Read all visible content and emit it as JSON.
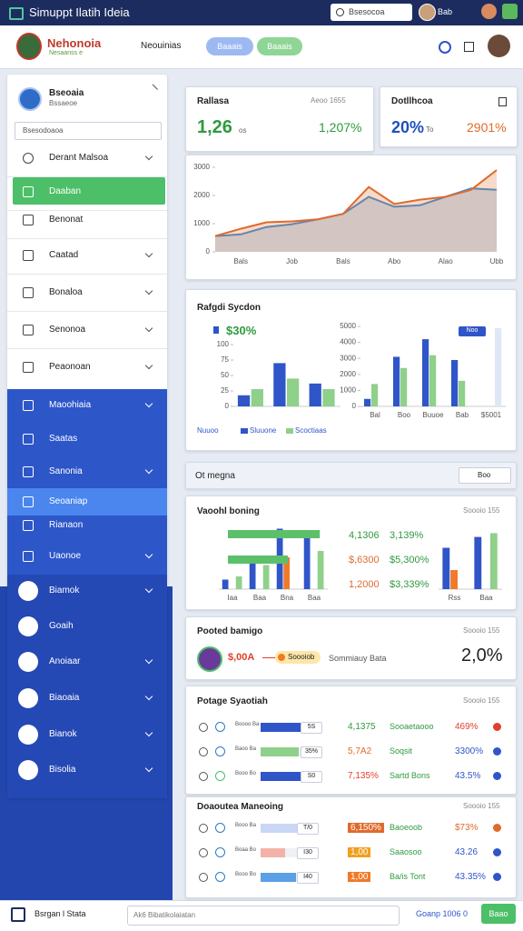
{
  "topbar": {
    "title": "Simuppt Ilatih Ideia",
    "search": "Bsesocoa",
    "user": "Bab"
  },
  "header": {
    "brand": "Nehonoia",
    "tagline": "Nesaanss e",
    "nav": "Neouinias",
    "buttons": [
      "Baaais",
      "Baaais"
    ]
  },
  "sidebar": {
    "title": "Bseoaia",
    "subtitle": "Bssaeoe",
    "search": "Bsesodoaoa",
    "items": [
      "Derant Malsoa",
      "Daaban",
      "Benonat",
      "Caatad",
      "Bonaloa",
      "Senonoa",
      "Peaonoan",
      "Maoohiaia",
      "Saatas",
      "Sanonia",
      "Seoaniap",
      "Rianaon",
      "Uaonoe",
      "Biamok",
      "Goaih",
      "Anoiaar",
      "Biaoaia",
      "Bianok",
      "Bisolia"
    ]
  },
  "stats": [
    {
      "title": "Rallasa",
      "note": "Aeoo 1655",
      "value": "1,26",
      "unit": "os",
      "change": "1,207%"
    },
    {
      "title": "Dotllhcoa",
      "value": "20%",
      "unit": "To",
      "change": "2901%"
    }
  ],
  "trend_chart": {
    "type": "line",
    "categories": [
      null,
      "Bals",
      null,
      "Job",
      null,
      "Bals",
      null,
      "Abo",
      null,
      "Alao",
      null,
      "Ubb"
    ],
    "series": [
      {
        "color": "#e06a2c",
        "values": [
          560,
          820,
          1050,
          1080,
          1150,
          1350,
          2300,
          1700,
          1850,
          1950,
          2200,
          2900
        ]
      },
      {
        "color": "#3b8fd6",
        "values": [
          560,
          620,
          880,
          980,
          1150,
          1350,
          1950,
          1600,
          1650,
          1950,
          2250,
          2200
        ]
      }
    ],
    "ylim": [
      0,
      3000
    ],
    "yticks": [
      0,
      1000,
      2000,
      3000
    ]
  },
  "bar_card": {
    "title": "Rafgdi Sycdon",
    "kpi": "$30%",
    "x_label": "Nuuoo",
    "left_chart": {
      "type": "bar",
      "categories": [
        null,
        null,
        null
      ],
      "series": [
        {
          "name": "Sluuone",
          "color": "#2f55c8",
          "values": [
            18,
            70,
            37
          ]
        },
        {
          "name": "Scoctiaas",
          "color": "#8fd08a",
          "values": [
            28,
            45,
            28
          ]
        }
      ],
      "ylim": [
        0,
        100
      ],
      "yticks": [
        0,
        25,
        50,
        75,
        100
      ]
    },
    "right_chart": {
      "type": "bar",
      "categories": [
        "Bal",
        "Boo",
        "Buuoe",
        "Bab",
        "$5001"
      ],
      "series": [
        {
          "name": "Noo",
          "color": "#2f55c8",
          "values": [
            470,
            3100,
            4200,
            2900,
            null
          ]
        },
        {
          "color": "#8fd08a",
          "values": [
            1400,
            2400,
            3200,
            1600,
            null
          ]
        },
        {
          "color": "#dfe7f7",
          "values": [
            null,
            null,
            null,
            null,
            4900
          ]
        }
      ],
      "ylim": [
        0,
        5000
      ],
      "yticks": [
        0,
        1000,
        2000,
        3000,
        4000,
        5000
      ]
    }
  },
  "filter": {
    "title": "Ot megna",
    "dropdown": "Boo"
  },
  "mixed_card": {
    "title": "Vaoohl boning",
    "note": "Soooio 155",
    "chart": {
      "type": "bar",
      "categories": [
        "Iaa",
        "Baa",
        "Bna",
        "Baa"
      ],
      "series": [
        {
          "color": "#2f55c8",
          "values": [
            15,
            40,
            95,
            92
          ]
        },
        {
          "color": "#f07a2a",
          "values": [
            null,
            null,
            50,
            null
          ]
        },
        {
          "color": "#8fd08a",
          "values": [
            20,
            38,
            null,
            60
          ]
        }
      ],
      "bars": {
        "color": "#5cbf6a",
        "values": [
          92,
          60
        ]
      },
      "ylim": [
        0,
        100
      ]
    },
    "stats": [
      {
        "value": "4,1306",
        "change": "3,139%",
        "color": "#2f9a3e"
      },
      {
        "value": "$,6300",
        "change": "$5,300%",
        "color": "#e06a2c"
      },
      {
        "value": "1,2000",
        "change": "$3,339%",
        "color": "#e06a2c"
      }
    ],
    "mini_chart": {
      "type": "bar",
      "categories": [
        "Rss",
        "Baa"
      ],
      "series": [
        {
          "color": "#2f55c8",
          "values": [
            65,
            82
          ]
        },
        {
          "color": "#f07a2a",
          "values": [
            30,
            null
          ]
        },
        {
          "color": "#8fd08a",
          "values": [
            null,
            88
          ]
        }
      ],
      "ylim": [
        0,
        100
      ]
    }
  },
  "promo": {
    "title": "Pooted bamigo",
    "note": "Soooio 155",
    "value": "$,00A",
    "pill": "Soooiob",
    "label": "Sommiauy Bata",
    "big": "2,0%"
  },
  "tables": [
    {
      "title": "Potage Syaotiah",
      "note": "Soooio 155",
      "rows": [
        {
          "tag": "Boooo Ba",
          "progress": 80,
          "bar_color": "#2f55c8",
          "pill": "5S",
          "value": "4,1375",
          "value_color": "#2f9a3e",
          "label": "Sooaetaooo",
          "change": "469%",
          "change_color": "#e0402c"
        },
        {
          "tag": "Baoo Ba",
          "progress": 70,
          "bar_color": "#8fd08a",
          "pill": "35%",
          "value": "5,7A2",
          "value_color": "#e06a2c",
          "label": "Soqsit",
          "change": "3300%",
          "change_color": "#2f55c8"
        },
        {
          "tag": "Booo Bo",
          "progress": 80,
          "bar_color": "#2f55c8",
          "pill": "S0",
          "value": "7,135%",
          "value_color": "#e0402c",
          "label": "Sartd Bons",
          "change": "43.5%",
          "change_color": "#2f55c8"
        }
      ]
    },
    {
      "title": "Doaoutea Maneoing",
      "note": "Soooio 155",
      "rows": [
        {
          "tag": "Booo Ba",
          "progress": 70,
          "bar_color": "#c9d6f5",
          "pill": "T/0",
          "value": "6,150%",
          "value_color": "#e06a2c",
          "label": "Baoeoob",
          "change": "$73%",
          "change_color": "#e06a2c"
        },
        {
          "tag": "Boaa Bo",
          "progress": 45,
          "bar_color": "#f3b2a8",
          "pill": "I30",
          "value": "1,00",
          "value_color": "#f0a020",
          "label": "Saaosoo",
          "change": "43.26",
          "change_color": "#2f55c8"
        },
        {
          "tag": "Booo Bo",
          "progress": 65,
          "bar_color": "#5aa0e6",
          "pill": "I40",
          "value": "1,00",
          "value_color": "#f07a2a",
          "label": "Ba/is Tont",
          "change": "43.35%",
          "change_color": "#2f55c8"
        }
      ]
    }
  ],
  "bottom": {
    "label": "Bsrgan l Stata",
    "input": "Ak6 Bibatikolaiatan",
    "link": "Goanp 1006 0",
    "button": "Baao"
  }
}
